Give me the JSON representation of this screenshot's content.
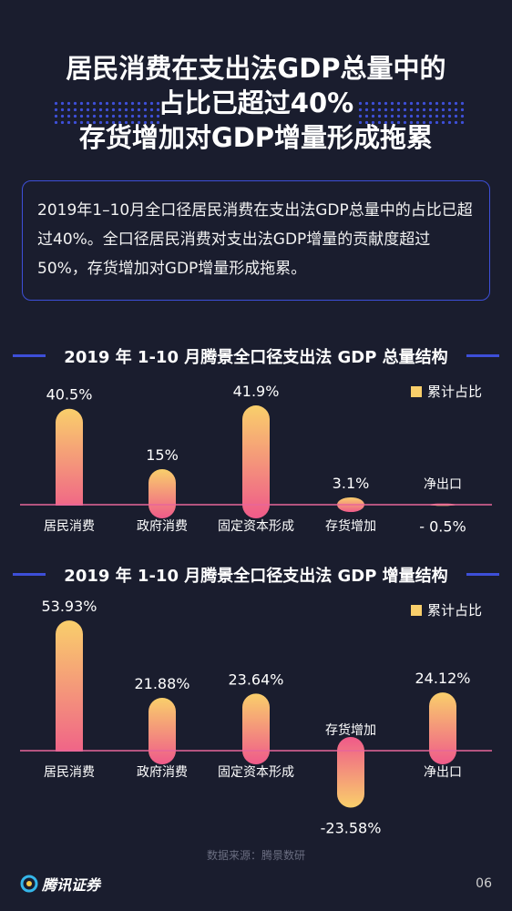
{
  "title": {
    "line1": "居民消费在支出法GDP总量中的",
    "line2": "占比已超过40%",
    "line3": "存货增加对GDP增量形成拖累"
  },
  "summary": "2019年1–10月全口径居民消费在支出法GDP总量中的占比已超过40%。全口径居民消费对支出法GDP增量的贡献度超过50%，存货增加对GDP增量形成拖累。",
  "colors": {
    "background": "#1a1d2e",
    "accent": "#3d4fd8",
    "bar_top": "#f9cf6b",
    "bar_bottom": "#ef5a8a",
    "baseline": "#e8669a"
  },
  "chart_data": [
    {
      "type": "bar",
      "title": "2019 年 1-10 月腾景全口径支出法 GDP 总量结构",
      "legend": "累计占比",
      "categories": [
        "居民消费",
        "政府消费",
        "固定资本形成",
        "存货增加",
        "净出口"
      ],
      "values": [
        40.5,
        15,
        41.9,
        3.1,
        -0.5
      ],
      "labels": [
        "40.5%",
        "15%",
        "41.9%",
        "3.1%",
        "- 0.5%"
      ]
    },
    {
      "type": "bar",
      "title": "2019 年 1-10 月腾景全口径支出法 GDP 增量结构",
      "legend": "累计占比",
      "categories": [
        "居民消费",
        "政府消费",
        "固定资本形成",
        "存货增加",
        "净出口"
      ],
      "values": [
        53.93,
        21.88,
        23.64,
        -23.58,
        24.12
      ],
      "labels": [
        "53.93%",
        "21.88%",
        "23.64%",
        "-23.58%",
        "24.12%"
      ]
    }
  ],
  "footer": {
    "source": "数据来源：腾景数研",
    "brand": "腾讯证券",
    "page": "06"
  }
}
